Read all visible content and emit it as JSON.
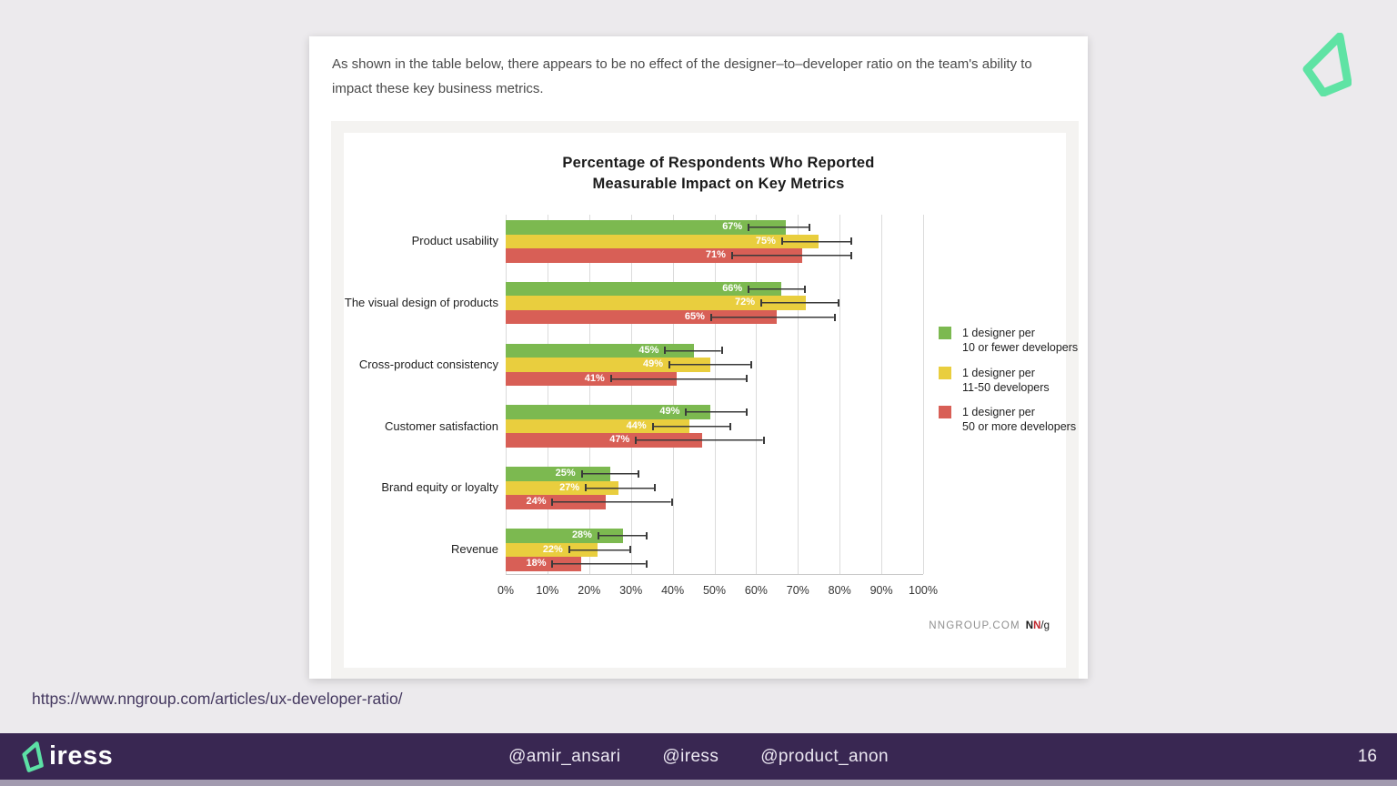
{
  "slide": {
    "paragraph": "As shown in the table below, there appears to be no effect of the designer–to–developer ratio on the team's ability to impact these key business metrics."
  },
  "chart_data": {
    "type": "bar",
    "orientation": "horizontal",
    "title_line1": "Percentage of Respondents Who Reported",
    "title_line2": "Measurable Impact on Key Metrics",
    "categories": [
      "Product usability",
      "The visual design of products",
      "Cross-product consistency",
      "Customer satisfaction",
      "Brand equity or loyalty",
      "Revenue"
    ],
    "series": [
      {
        "name": "1 designer per 10 or fewer developers",
        "color": "#7cb950",
        "values": [
          67,
          66,
          45,
          49,
          25,
          28
        ],
        "error_ranges": [
          [
            58,
            73
          ],
          [
            58,
            72
          ],
          [
            38,
            52
          ],
          [
            43,
            58
          ],
          [
            18,
            32
          ],
          [
            22,
            34
          ]
        ]
      },
      {
        "name": "1 designer per 11-50 developers",
        "color": "#e9ce3e",
        "values": [
          75,
          72,
          49,
          44,
          27,
          22
        ],
        "error_ranges": [
          [
            66,
            83
          ],
          [
            61,
            80
          ],
          [
            39,
            59
          ],
          [
            35,
            54
          ],
          [
            19,
            36
          ],
          [
            15,
            30
          ]
        ]
      },
      {
        "name": "1 designer per 50 or more developers",
        "color": "#d85f56",
        "values": [
          71,
          65,
          41,
          47,
          24,
          18
        ],
        "error_ranges": [
          [
            54,
            83
          ],
          [
            49,
            79
          ],
          [
            25,
            58
          ],
          [
            31,
            62
          ],
          [
            11,
            40
          ],
          [
            11,
            34
          ]
        ]
      }
    ],
    "value_suffix": "%",
    "xlim": [
      0,
      100
    ],
    "x_ticks": [
      "0%",
      "10%",
      "20%",
      "30%",
      "40%",
      "50%",
      "60%",
      "70%",
      "80%",
      "90%",
      "100%"
    ],
    "grid": "vertical",
    "legend_position": "right",
    "legend": [
      {
        "color": "#7cb950",
        "line1": "1 designer per",
        "line2": "10 or fewer developers"
      },
      {
        "color": "#e9ce3e",
        "line1": "1 designer per",
        "line2": "11-50 developers"
      },
      {
        "color": "#d85f56",
        "line1": "1 designer per",
        "line2": "50 or more developers"
      }
    ],
    "attribution": {
      "site": "NNGROUP.COM",
      "logo_n1": "N",
      "logo_n2": "N",
      "logo_suffix": "/g"
    }
  },
  "source_url": "https://www.nngroup.com/articles/ux-developer-ratio/",
  "footer": {
    "brand": "iress",
    "handles": [
      "@amir_ansari",
      "@iress",
      "@product_anon"
    ],
    "page_number": "16",
    "background": "#392752",
    "accent": "#5ce0a5"
  }
}
